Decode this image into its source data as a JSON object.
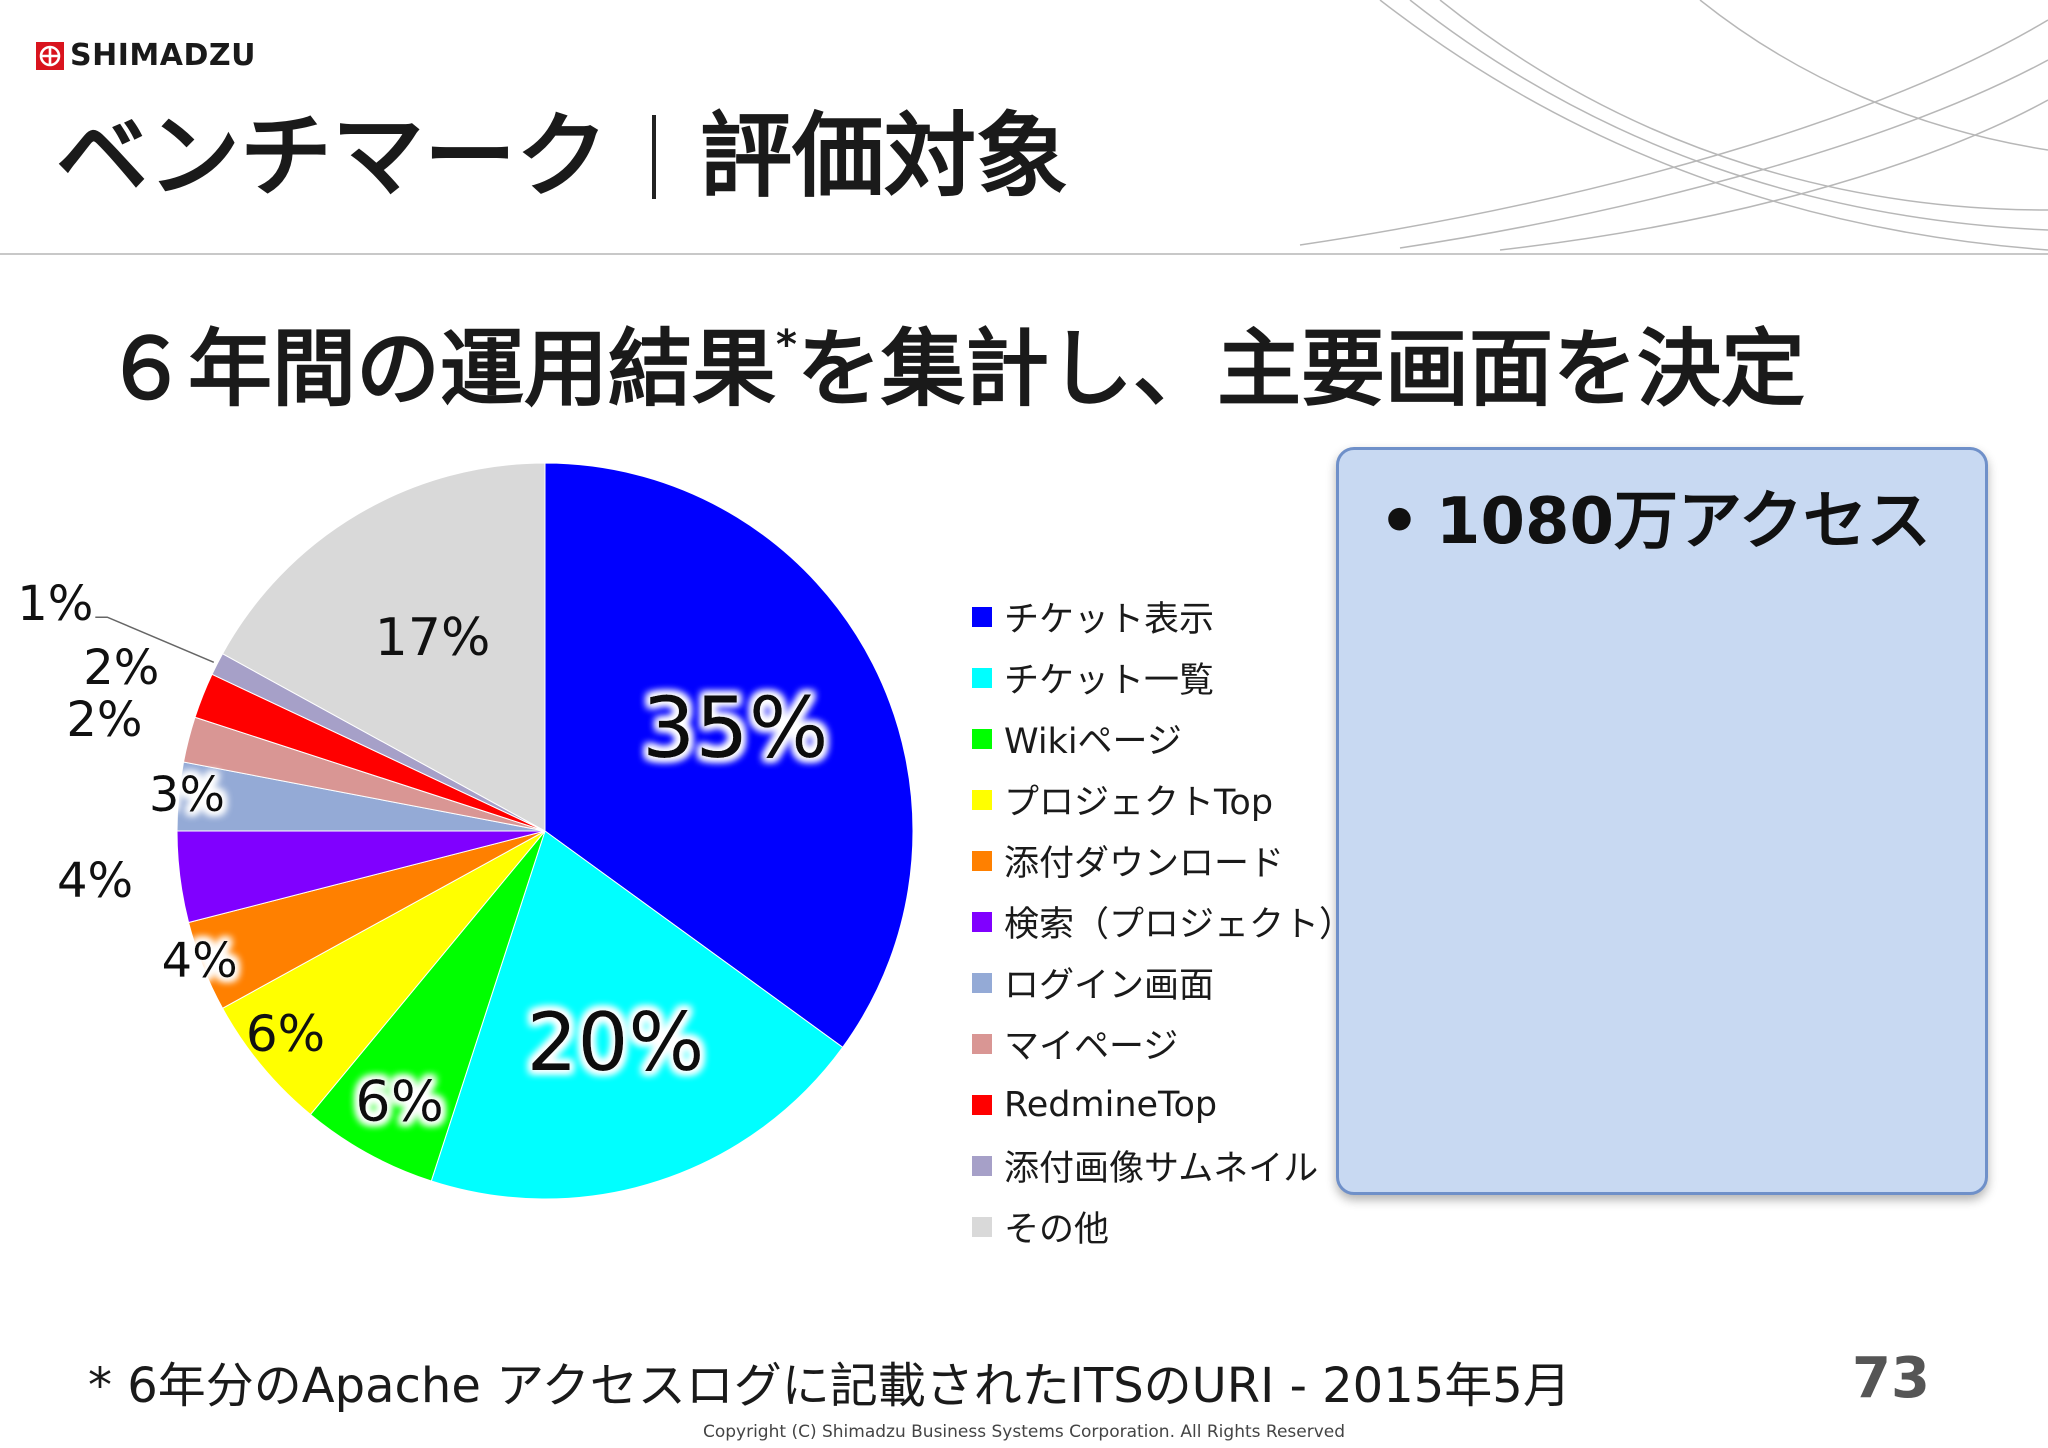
{
  "header": {
    "logo_text": "SHIMADZU",
    "title_left": "ベンチマーク",
    "title_right": "評価対象"
  },
  "headline": {
    "main": "６年間の運用結果",
    "asterisk": "*",
    "rest": "を集計し、主要画面を決定"
  },
  "panel": {
    "bullet": "•",
    "text": "1080万アクセス"
  },
  "footer": {
    "footnote": "* 6年分のApache アクセスログに記載されたITSのURI - 2015年5月",
    "page_number": "73",
    "copyright": "Copyright (C) Shimadzu Business Systems Corporation. All Rights Reserved"
  },
  "chart_data": {
    "type": "pie",
    "start_angle": "12 o'clock, clockwise",
    "legend_position": "right",
    "slices": [
      {
        "label": "チケット表示",
        "value": 35,
        "display": "35%",
        "color": "#0000ff"
      },
      {
        "label": "チケット一覧",
        "value": 20,
        "display": "20%",
        "color": "#00ffff"
      },
      {
        "label": "Wikiページ",
        "value": 6,
        "display": "6%",
        "color": "#00ff00"
      },
      {
        "label": "プロジェクトTop",
        "value": 6,
        "display": "6%",
        "color": "#ffff00"
      },
      {
        "label": "添付ダウンロード",
        "value": 4,
        "display": "4%",
        "color": "#ff8000"
      },
      {
        "label": "検索（プロジェクト）",
        "value": 4,
        "display": "4%",
        "color": "#8000ff"
      },
      {
        "label": "ログイン画面",
        "value": 3,
        "display": "3%",
        "color": "#94aad6"
      },
      {
        "label": "マイページ",
        "value": 2,
        "display": "2%",
        "color": "#d99694"
      },
      {
        "label": "RedmineTop",
        "value": 2,
        "display": "2%",
        "color": "#ff0000"
      },
      {
        "label": "添付画像サムネイル",
        "value": 1,
        "display": "1%",
        "color": "#a6a0c8"
      },
      {
        "label": "その他",
        "value": 17,
        "display": "17%",
        "color": "#d9d9d9"
      }
    ]
  }
}
